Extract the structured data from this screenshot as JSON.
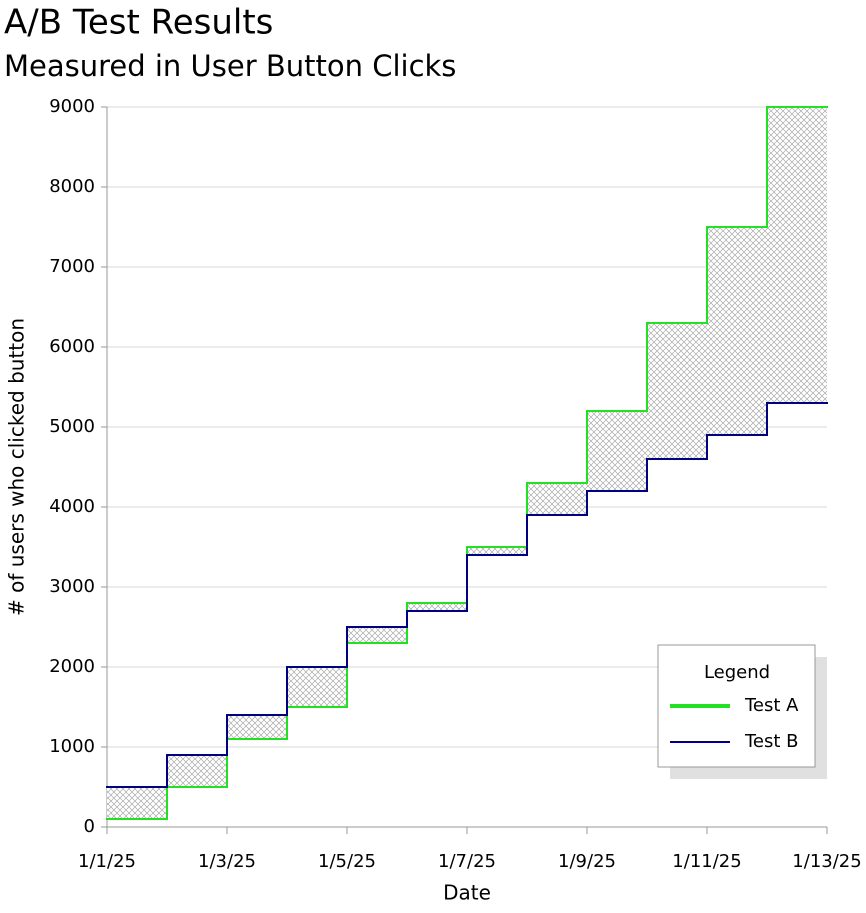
{
  "chart_data": {
    "type": "step",
    "title": "A/B Test Results",
    "subtitle": "Measured in User Button Clicks",
    "x_label": "Date",
    "y_label": "# of users who clicked button",
    "categories": [
      "1/1/25",
      null,
      "1/3/25",
      null,
      "1/5/25",
      null,
      "1/7/25",
      null,
      "1/9/25",
      null,
      "1/11/25",
      null,
      "1/13/25"
    ],
    "series": [
      {
        "name": "Test A",
        "color": "#22e022",
        "values": [
          100,
          500,
          1100,
          1500,
          2300,
          2800,
          3500,
          4300,
          5200,
          6300,
          7500,
          9000,
          9000
        ]
      },
      {
        "name": "Test B",
        "color": "#000080",
        "values": [
          500,
          900,
          1400,
          2000,
          2500,
          2700,
          3400,
          3900,
          4200,
          4600,
          4900,
          5300,
          5300
        ]
      }
    ],
    "ylim": [
      0,
      9000
    ],
    "yticks": [
      0,
      1000,
      2000,
      3000,
      4000,
      5000,
      6000,
      7000,
      8000,
      9000
    ],
    "grid": true,
    "legend": {
      "title": "Legend",
      "position": "lower right"
    }
  }
}
